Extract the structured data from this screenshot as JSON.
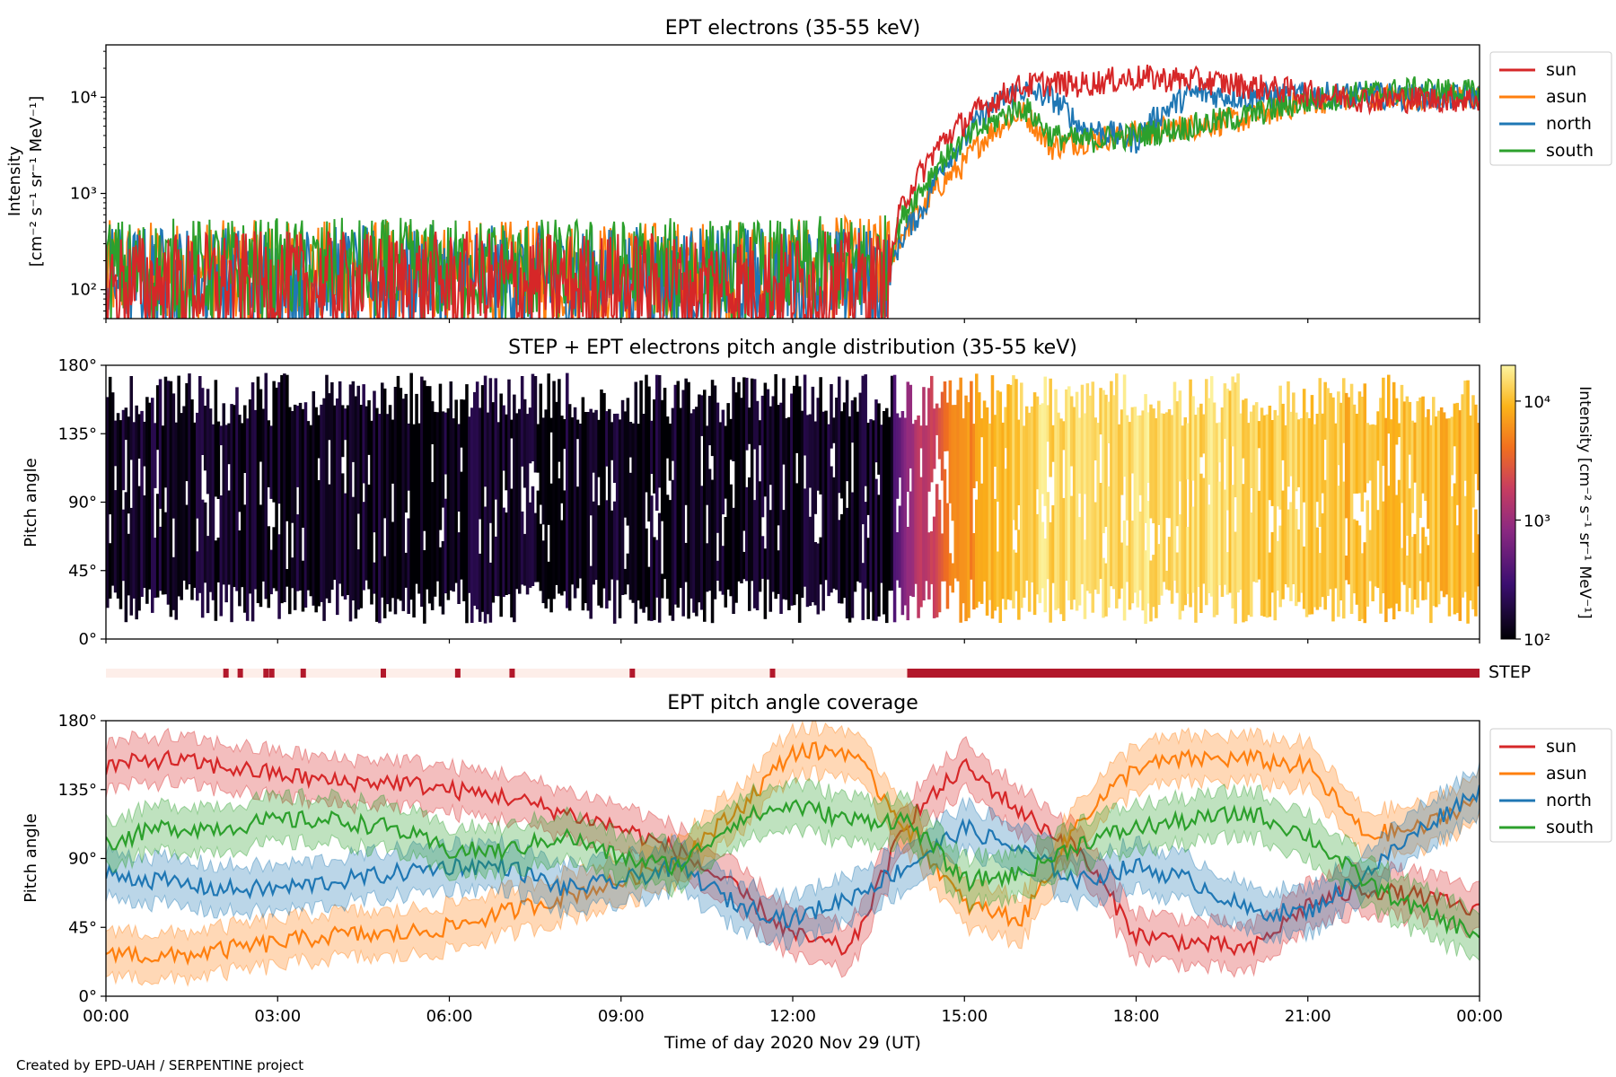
{
  "footer": "Created by EPD-UAH / SERPENTINE project",
  "colors": {
    "sun": "#d62728",
    "asun": "#ff7f0e",
    "north": "#1f77b4",
    "south": "#2ca02c",
    "step_on": "#b2182b",
    "step_off": "#fdeee9"
  },
  "chart_data": [
    {
      "type": "line",
      "title": "EPT electrons (35-55 keV)",
      "ylabel": [
        "Intensity",
        "[cm⁻² s⁻¹ sr⁻¹ MeV⁻¹]"
      ],
      "yscale": "log",
      "ylim": [
        50,
        35000
      ],
      "yticks": [
        {
          "value": 100,
          "label": "10²"
        },
        {
          "value": 1000,
          "label": "10³"
        },
        {
          "value": 10000,
          "label": "10⁴"
        }
      ],
      "xlim_hours": [
        0,
        24
      ],
      "legend": [
        "sun",
        "asun",
        "north",
        "south"
      ],
      "legend_position": "outside-right",
      "series": [
        {
          "name": "sun",
          "hours": [
            0,
            3,
            6,
            9,
            12,
            13.7,
            14.3,
            15,
            15.5,
            16,
            16.5,
            17,
            18,
            19,
            20,
            21,
            22,
            23,
            24
          ],
          "values": [
            130,
            130,
            130,
            130,
            130,
            130,
            1800,
            5500,
            9000,
            13000,
            14000,
            13500,
            16000,
            15000,
            13000,
            11000,
            9500,
            9500,
            9500
          ]
        },
        {
          "name": "asun",
          "hours": [
            0,
            3,
            6,
            9,
            12,
            13.7,
            14.3,
            15,
            15.5,
            16,
            16.5,
            17,
            18,
            19,
            20,
            21,
            22,
            23,
            24
          ],
          "values": [
            170,
            170,
            170,
            170,
            170,
            200,
            700,
            2000,
            4500,
            7000,
            3000,
            3500,
            4200,
            5000,
            6000,
            9000,
            10000,
            10000,
            10000
          ]
        },
        {
          "name": "north",
          "hours": [
            0,
            3,
            6,
            9,
            12,
            13.7,
            14.3,
            15,
            15.5,
            16,
            16.5,
            17,
            18,
            19,
            20,
            21,
            22,
            23,
            24
          ],
          "values": [
            150,
            150,
            150,
            150,
            150,
            150,
            700,
            3500,
            8000,
            12000,
            10000,
            5000,
            3500,
            11000,
            10000,
            10500,
            10500,
            10000,
            10000
          ]
        },
        {
          "name": "south",
          "hours": [
            0,
            3,
            6,
            9,
            12,
            13.7,
            14.3,
            15,
            15.5,
            16,
            16.5,
            17,
            18,
            19,
            20,
            21,
            22,
            23,
            24
          ],
          "values": [
            180,
            180,
            180,
            180,
            180,
            200,
            1200,
            3500,
            5500,
            8000,
            4000,
            3500,
            4000,
            5000,
            6500,
            9000,
            11000,
            12000,
            11000
          ]
        }
      ]
    },
    {
      "type": "heatmap",
      "title": "STEP + EPT electrons pitch angle distribution (35-55 keV)",
      "ylabel": "Pitch angle",
      "ylim": [
        0,
        180
      ],
      "yticks": [
        "0°",
        "45°",
        "90°",
        "135°",
        "180°"
      ],
      "xlim_hours": [
        0,
        24
      ],
      "colorbar": {
        "label": "Intensity [cm⁻² s⁻¹ sr⁻¹ MeV⁻¹]",
        "scale": "log",
        "range": [
          100,
          20000
        ],
        "ticks": [
          {
            "value": 100,
            "label": "10²"
          },
          {
            "value": 1000,
            "label": "10³"
          },
          {
            "value": 10000,
            "label": "10⁴"
          }
        ],
        "colormap": "inferno-like"
      }
    },
    {
      "type": "bar",
      "label": "STEP",
      "xlim_hours": [
        0,
        24
      ],
      "on_hours": [
        2.05,
        2.3,
        2.75,
        2.85,
        3.4,
        4.8,
        6.1,
        7.05,
        9.15,
        11.6
      ],
      "continuous_on_from_hours": 14.0
    },
    {
      "type": "line",
      "title": "EPT pitch angle coverage",
      "ylabel": "Pitch angle",
      "xlabel": "Time of day 2020 Nov 29 (UT)",
      "ylim": [
        0,
        180
      ],
      "yticks": [
        "0°",
        "45°",
        "90°",
        "135°",
        "180°"
      ],
      "xticks": [
        "00:00",
        "03:00",
        "06:00",
        "09:00",
        "12:00",
        "15:00",
        "18:00",
        "21:00",
        "00:00"
      ],
      "xlim_hours": [
        0,
        24
      ],
      "legend": [
        "sun",
        "asun",
        "north",
        "south"
      ],
      "legend_position": "outside-right",
      "series": [
        {
          "name": "sun",
          "hours": [
            0,
            1,
            2,
            3,
            4,
            5,
            6,
            7,
            8,
            9,
            10,
            11,
            12,
            13,
            14,
            15,
            16,
            17,
            18,
            19,
            20,
            21,
            22,
            23,
            24
          ],
          "values": [
            150,
            155,
            150,
            145,
            140,
            140,
            135,
            130,
            120,
            110,
            95,
            70,
            40,
            30,
            115,
            150,
            120,
            95,
            40,
            35,
            30,
            60,
            70,
            65,
            55
          ]
        },
        {
          "name": "asun",
          "hours": [
            0,
            1,
            2,
            3,
            4,
            5,
            6,
            7,
            8,
            9,
            10,
            11,
            12,
            13,
            14,
            15,
            16,
            17,
            18,
            19,
            20,
            21,
            22,
            23,
            24
          ],
          "values": [
            30,
            25,
            30,
            35,
            40,
            40,
            45,
            55,
            65,
            75,
            90,
            120,
            160,
            160,
            110,
            60,
            50,
            115,
            150,
            155,
            155,
            150,
            105,
            110,
            130
          ]
        },
        {
          "name": "north",
          "hours": [
            0,
            1,
            2,
            3,
            4,
            5,
            6,
            7,
            8,
            9,
            10,
            11,
            12,
            13,
            14,
            15,
            16,
            17,
            18,
            19,
            20,
            21,
            22,
            23,
            24
          ],
          "values": [
            80,
            75,
            70,
            70,
            75,
            80,
            85,
            85,
            70,
            75,
            85,
            60,
            50,
            65,
            85,
            110,
            95,
            75,
            85,
            75,
            55,
            55,
            80,
            110,
            135
          ]
        },
        {
          "name": "south",
          "hours": [
            0,
            1,
            2,
            3,
            4,
            5,
            6,
            7,
            8,
            9,
            10,
            11,
            12,
            13,
            14,
            15,
            16,
            17,
            18,
            19,
            20,
            21,
            22,
            23,
            24
          ],
          "values": [
            100,
            110,
            110,
            115,
            115,
            110,
            95,
            95,
            105,
            90,
            85,
            115,
            125,
            115,
            115,
            75,
            80,
            100,
            110,
            115,
            120,
            105,
            75,
            55,
            40
          ]
        }
      ]
    }
  ]
}
